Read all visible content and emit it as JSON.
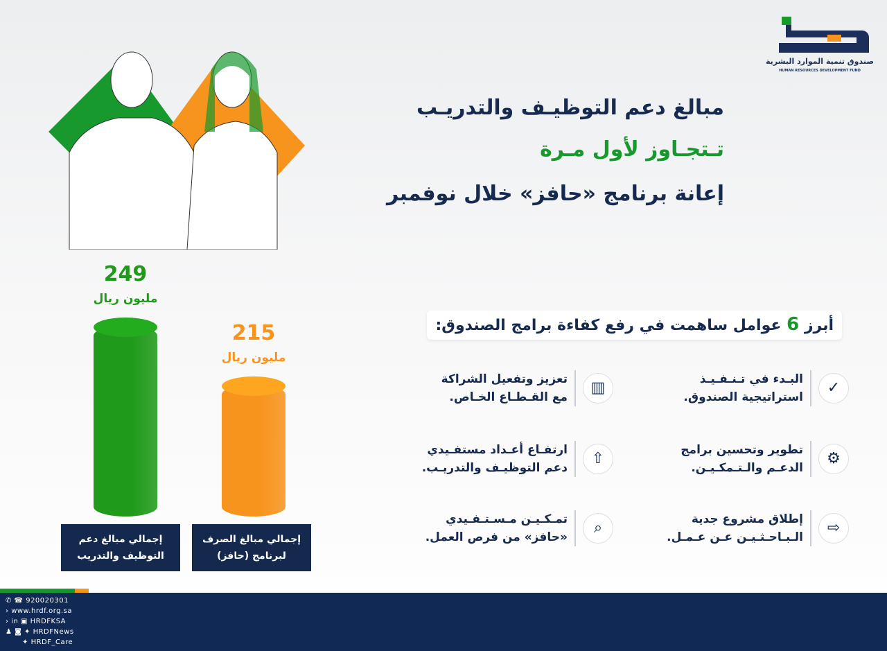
{
  "logo": {
    "arabic": "صندوق تنمية الموارد البشرية",
    "english": "HUMAN RESOURCES DEVELOPMENT FUND"
  },
  "title": {
    "line1": "مبالغ دعم التوظيـف والتدريـب",
    "line2": "تـتجـاوز لأول مـرة",
    "line3": "إعانة برنامج «حافز» خلال نوفمبر"
  },
  "factors": {
    "heading_pre": "أبرز",
    "heading_num": "6",
    "heading_post": "عوامل ساهمت في رفع كفاءة برامج الصندوق:",
    "items": [
      {
        "text": "البـدء في تـنـفـيـذ\nاستراتيجية الصندوق.",
        "icon": "check-circle-icon"
      },
      {
        "text": "تعزيز وتفعيل الشراكة\nمع القـطـاع الخـاص.",
        "icon": "buildings-icon"
      },
      {
        "text": "تطوير وتحسين برامج\nالدعـم والـتـمكـيـن.",
        "icon": "gears-icon"
      },
      {
        "text": "ارتفـاع أعـداد مستفـيدي\nدعم التوظيـف والتدريـب.",
        "icon": "upload-arrow-icon"
      },
      {
        "text": "إطلاق مشروع جدية\nالـبـاحـثـيـن عـن عـمـل.",
        "icon": "arrow-right-icon"
      },
      {
        "text": "تمـكـيـن مـسـتـفـيدي\n«حافز» من فرص العمل.",
        "icon": "magnifier-icon"
      }
    ]
  },
  "chart_data": {
    "type": "bar",
    "categories": [
      "إجمالي مبالغ دعم\nالتوظيف والتدريب",
      "إجمالي مبالغ الصرف\nلبرنامج (حافز)"
    ],
    "values": [
      249,
      215
    ],
    "unit": "مليون ريال",
    "colors": [
      "#1f9a1a",
      "#f7941d"
    ]
  },
  "footer": {
    "phone": "920020301",
    "website": "www.hrdf.org.sa",
    "handle1": "HRDFKSA",
    "handle2": "HRDFNews",
    "handle3": "HRDF_Care"
  },
  "colors": {
    "navy": "#112a55",
    "green": "#18992d",
    "orange": "#f7941d"
  }
}
